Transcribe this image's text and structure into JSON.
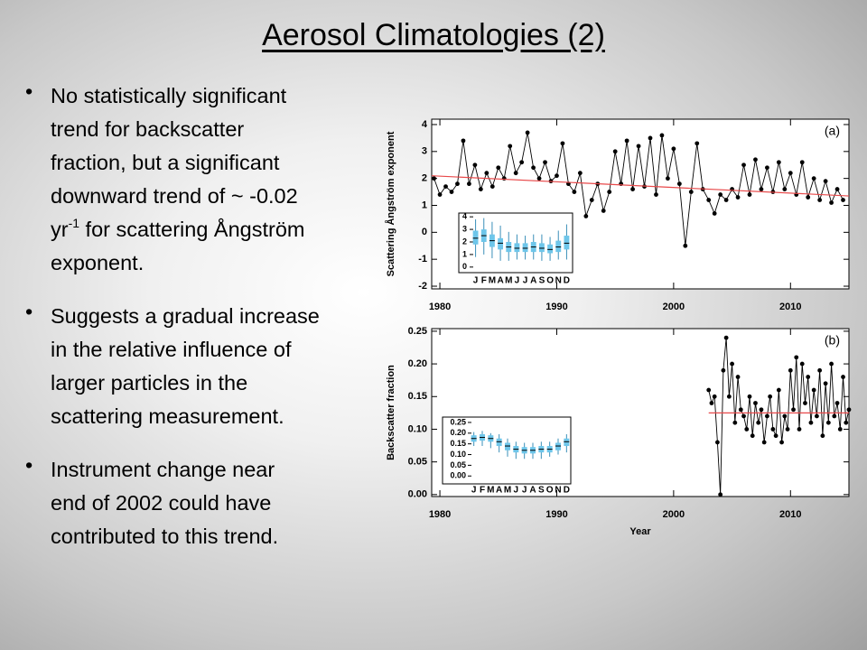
{
  "slide": {
    "title": "Aerosol Climatologies (2)",
    "bullets": [
      {
        "lines": [
          "No statistically significant",
          "trend for backscatter",
          "fraction, but a significant",
          "downward trend of ~ -0.02",
          [
            "yr",
            "-1",
            " for scattering Ångström"
          ],
          "exponent."
        ]
      },
      {
        "lines": [
          "Suggests a gradual increase",
          "in the relative influence of",
          "larger particles in the",
          "scattering measurement."
        ]
      },
      {
        "lines": [
          "Instrument change near",
          "end of 2002 could have",
          "contributed to this trend."
        ]
      }
    ]
  },
  "chart_data": [
    {
      "type": "line",
      "ylabel": "Scattering Ångström exponent",
      "panel_label": "(a)",
      "xlim": [
        1979.3,
        2015
      ],
      "xticks": [
        1980,
        1990,
        2000,
        2010
      ],
      "ylim": [
        -2.1,
        4.2
      ],
      "yticks": [
        -2,
        -1,
        0,
        1,
        2,
        3,
        4
      ],
      "x": [
        1979.5,
        1980,
        1980.5,
        1981,
        1981.5,
        1982,
        1982.5,
        1983,
        1983.5,
        1984,
        1984.5,
        1985,
        1985.5,
        1986,
        1986.5,
        1987,
        1987.5,
        1988,
        1988.5,
        1989,
        1989.5,
        1990,
        1990.5,
        1991,
        1991.5,
        1992,
        1992.5,
        1993,
        1993.5,
        1994,
        1994.5,
        1995,
        1995.5,
        1996,
        1996.5,
        1997,
        1997.5,
        1998,
        1998.5,
        1999,
        1999.5,
        2000,
        2000.5,
        2001,
        2001.5,
        2002,
        2002.5,
        2003,
        2003.5,
        2004,
        2004.5,
        2005,
        2005.5,
        2006,
        2006.5,
        2007,
        2007.5,
        2008,
        2008.5,
        2009,
        2009.5,
        2010,
        2010.5,
        2011,
        2011.5,
        2012,
        2012.5,
        2013,
        2013.5,
        2014,
        2014.5
      ],
      "series": [
        {
          "color": "#000000",
          "values": [
            2.0,
            1.4,
            1.7,
            1.5,
            1.8,
            3.4,
            1.8,
            2.5,
            1.6,
            2.2,
            1.7,
            2.4,
            2.0,
            3.2,
            2.2,
            2.6,
            3.7,
            2.4,
            2.0,
            2.6,
            1.9,
            2.1,
            3.3,
            1.8,
            1.5,
            2.2,
            0.6,
            1.2,
            1.8,
            0.8,
            1.5,
            3.0,
            1.8,
            3.4,
            1.6,
            3.2,
            1.7,
            3.5,
            1.4,
            3.6,
            2.0,
            3.1,
            1.8,
            -0.5,
            1.5,
            3.3,
            1.6,
            1.2,
            0.7,
            1.4,
            1.2,
            1.6,
            1.3,
            2.5,
            1.4,
            2.7,
            1.6,
            2.4,
            1.5,
            2.6,
            1.6,
            2.2,
            1.4,
            2.6,
            1.3,
            2.0,
            1.2,
            1.9,
            1.1,
            1.6,
            1.2
          ]
        }
      ],
      "trend": {
        "color": "#e8494a",
        "x": [
          1979.3,
          2015
        ],
        "values": [
          2.1,
          1.35
        ]
      },
      "inset": {
        "categories": [
          "J",
          "F",
          "M",
          "A",
          "M",
          "J",
          "J",
          "A",
          "S",
          "O",
          "N",
          "D"
        ],
        "ylim": [
          -0.3,
          4.3
        ],
        "yticks": [
          0,
          1,
          2,
          3,
          4
        ],
        "color": "#6ec6ea",
        "median": [
          2.3,
          2.5,
          2.1,
          1.9,
          1.6,
          1.5,
          1.5,
          1.6,
          1.5,
          1.4,
          1.6,
          1.9
        ],
        "q1": [
          1.8,
          2.0,
          1.6,
          1.4,
          1.2,
          1.2,
          1.2,
          1.2,
          1.2,
          1.1,
          1.2,
          1.4
        ],
        "q3": [
          2.9,
          3.0,
          2.6,
          2.3,
          2.0,
          1.9,
          1.9,
          2.0,
          1.9,
          1.8,
          2.1,
          2.5
        ],
        "lo": [
          0.8,
          1.0,
          0.7,
          0.5,
          0.5,
          0.6,
          0.6,
          0.6,
          0.5,
          0.5,
          0.6,
          0.6
        ],
        "hi": [
          3.8,
          3.9,
          3.6,
          3.3,
          2.8,
          2.6,
          2.5,
          2.6,
          2.6,
          2.4,
          2.9,
          3.4
        ]
      }
    },
    {
      "type": "line",
      "ylabel": "Backscatter fraction",
      "xlabel": "Year",
      "panel_label": "(b)",
      "xlim": [
        1979.3,
        2015
      ],
      "xticks": [
        1980,
        1990,
        2000,
        2010
      ],
      "ylim": [
        -0.003,
        0.254
      ],
      "yticks": [
        {
          "value": 0,
          "label": "0.00"
        },
        0.05,
        {
          "value": 0.1,
          "label": "0.10"
        },
        0.15,
        {
          "value": 0.2,
          "label": "0.20"
        },
        0.25
      ],
      "x": [
        2003,
        2003.25,
        2003.5,
        2003.75,
        2004,
        2004.25,
        2004.5,
        2004.75,
        2005,
        2005.25,
        2005.5,
        2005.75,
        2006,
        2006.25,
        2006.5,
        2006.75,
        2007,
        2007.25,
        2007.5,
        2007.75,
        2008,
        2008.25,
        2008.5,
        2008.75,
        2009,
        2009.25,
        2009.5,
        2009.75,
        2010,
        2010.25,
        2010.5,
        2010.75,
        2011,
        2011.25,
        2011.5,
        2011.75,
        2012,
        2012.25,
        2012.5,
        2012.75,
        2013,
        2013.25,
        2013.5,
        2013.75,
        2014,
        2014.25,
        2014.5,
        2014.75,
        2015
      ],
      "series": [
        {
          "color": "#000000",
          "values": [
            0.16,
            0.14,
            0.15,
            0.08,
            0.0,
            0.19,
            0.24,
            0.15,
            0.2,
            0.11,
            0.18,
            0.13,
            0.12,
            0.1,
            0.15,
            0.09,
            0.14,
            0.11,
            0.13,
            0.08,
            0.12,
            0.15,
            0.1,
            0.09,
            0.16,
            0.08,
            0.12,
            0.1,
            0.19,
            0.13,
            0.21,
            0.1,
            0.2,
            0.14,
            0.18,
            0.11,
            0.16,
            0.12,
            0.19,
            0.09,
            0.17,
            0.11,
            0.2,
            0.12,
            0.14,
            0.1,
            0.18,
            0.11,
            0.13
          ]
        }
      ],
      "trend": {
        "color": "#e8494a",
        "x": [
          2003,
          2015
        ],
        "values": [
          0.125,
          0.125
        ]
      },
      "inset": {
        "categories": [
          "J",
          "F",
          "M",
          "A",
          "M",
          "J",
          "J",
          "A",
          "S",
          "O",
          "N",
          "D"
        ],
        "ylim": [
          -0.02,
          0.275
        ],
        "yticks": [
          {
            "value": 0,
            "label": "0.00"
          },
          0.05,
          {
            "value": 0.1,
            "label": "0.10"
          },
          0.15,
          {
            "value": 0.2,
            "label": "0.20"
          },
          0.25
        ],
        "color": "#6ec6ea",
        "median": [
          0.175,
          0.18,
          0.175,
          0.16,
          0.14,
          0.125,
          0.12,
          0.12,
          0.125,
          0.125,
          0.14,
          0.16
        ],
        "q1": [
          0.16,
          0.165,
          0.16,
          0.14,
          0.12,
          0.11,
          0.105,
          0.105,
          0.11,
          0.11,
          0.12,
          0.14
        ],
        "q3": [
          0.19,
          0.195,
          0.19,
          0.175,
          0.155,
          0.14,
          0.135,
          0.135,
          0.14,
          0.14,
          0.155,
          0.175
        ],
        "lo": [
          0.14,
          0.14,
          0.13,
          0.11,
          0.09,
          0.08,
          0.08,
          0.08,
          0.08,
          0.09,
          0.1,
          0.11
        ],
        "hi": [
          0.205,
          0.21,
          0.2,
          0.195,
          0.175,
          0.16,
          0.155,
          0.155,
          0.16,
          0.16,
          0.175,
          0.195
        ]
      }
    }
  ]
}
